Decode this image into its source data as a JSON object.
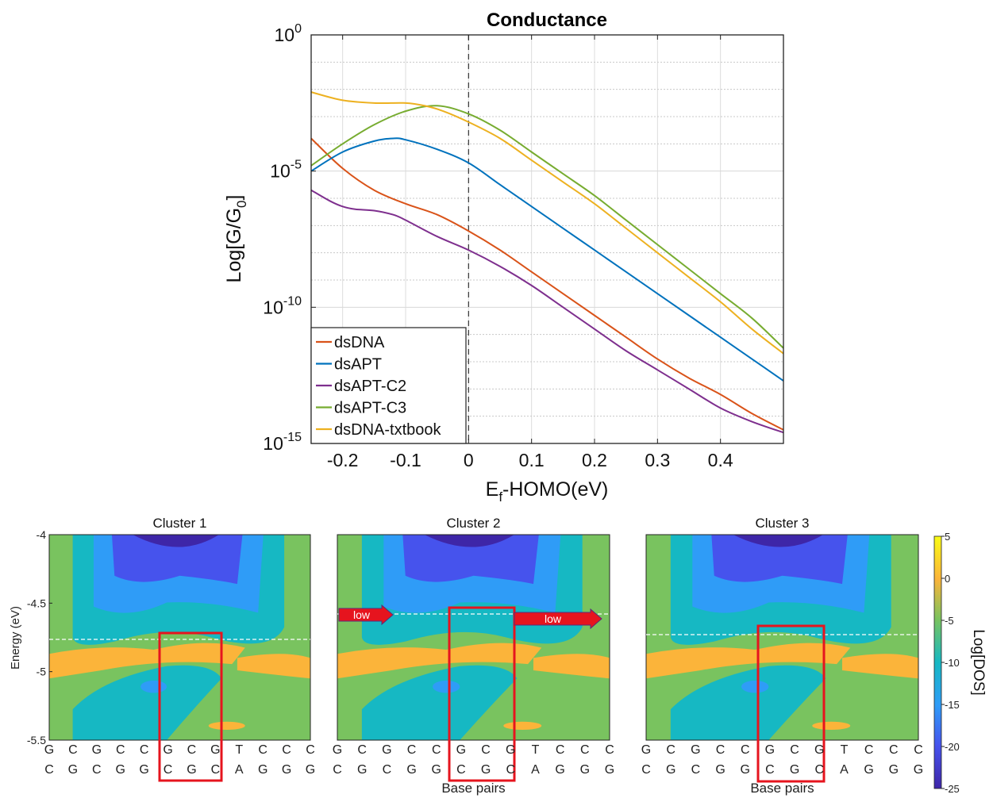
{
  "chart_data": [
    {
      "type": "line",
      "title": "Conductance",
      "xlabel_main": "E",
      "xlabel_sub": "f",
      "xlabel_rest": "-HOMO(eV)",
      "ylabel_pre": "Log[G/G",
      "ylabel_sub": "0",
      "ylabel_post": "]",
      "yscale": "log",
      "xlim": [
        -0.25,
        0.5
      ],
      "ylim_exponent": [
        -15,
        0
      ],
      "xticks": [
        -0.2,
        -0.1,
        0,
        0.1,
        0.2,
        0.3,
        0.4
      ],
      "xtick_labels": [
        "-0.2",
        "-0.1",
        "0",
        "0.1",
        "0.2",
        "0.3",
        "0.4"
      ],
      "yticks": [
        {
          "exponent": -15,
          "base": "10",
          "sup": "-15"
        },
        {
          "exponent": -10,
          "base": "10",
          "sup": "-10"
        },
        {
          "exponent": -5,
          "base": "10",
          "sup": "-5"
        },
        {
          "exponent": 0,
          "base": "10",
          "sup": "0"
        }
      ],
      "grid": true,
      "vline_x": 0,
      "legend_placement": "bottom-left",
      "series": [
        {
          "name": "dsDNA",
          "color": "#d95319",
          "x": [
            -0.25,
            -0.2,
            -0.15,
            -0.1,
            -0.05,
            0,
            0.05,
            0.1,
            0.15,
            0.2,
            0.25,
            0.3,
            0.35,
            0.4,
            0.45,
            0.5
          ],
          "log10y": [
            -3.8,
            -4.9,
            -5.7,
            -6.2,
            -6.6,
            -7.2,
            -7.9,
            -8.7,
            -9.5,
            -10.3,
            -11.1,
            -11.9,
            -12.6,
            -13.2,
            -13.9,
            -14.5
          ]
        },
        {
          "name": "dsAPT",
          "color": "#0072bd",
          "x": [
            -0.25,
            -0.2,
            -0.15,
            -0.12,
            -0.1,
            -0.05,
            0,
            0.05,
            0.1,
            0.15,
            0.2,
            0.25,
            0.3,
            0.35,
            0.4,
            0.45,
            0.5
          ],
          "log10y": [
            -5.0,
            -4.3,
            -3.9,
            -3.8,
            -3.85,
            -4.2,
            -4.7,
            -5.5,
            -6.3,
            -7.1,
            -7.9,
            -8.7,
            -9.5,
            -10.3,
            -11.1,
            -11.9,
            -12.7
          ]
        },
        {
          "name": "dsAPT-C2",
          "color": "#7e2f8e",
          "x": [
            -0.25,
            -0.22,
            -0.2,
            -0.18,
            -0.15,
            -0.12,
            -0.1,
            -0.05,
            0,
            0.05,
            0.1,
            0.15,
            0.2,
            0.25,
            0.3,
            0.35,
            0.4,
            0.45,
            0.5
          ],
          "log10y": [
            -5.7,
            -6.1,
            -6.3,
            -6.4,
            -6.45,
            -6.6,
            -6.8,
            -7.4,
            -7.9,
            -8.5,
            -9.2,
            -10.0,
            -10.8,
            -11.6,
            -12.3,
            -13.0,
            -13.7,
            -14.2,
            -14.6
          ]
        },
        {
          "name": "dsAPT-C3",
          "color": "#77ac30",
          "x": [
            -0.25,
            -0.2,
            -0.15,
            -0.1,
            -0.05,
            0,
            0.05,
            0.1,
            0.15,
            0.2,
            0.25,
            0.3,
            0.35,
            0.4,
            0.45,
            0.5
          ],
          "log10y": [
            -4.8,
            -4.0,
            -3.3,
            -2.8,
            -2.6,
            -2.9,
            -3.5,
            -4.3,
            -5.1,
            -5.9,
            -6.8,
            -7.7,
            -8.6,
            -9.5,
            -10.4,
            -11.5
          ]
        },
        {
          "name": "dsDNA-txtbook",
          "color": "#edb120",
          "x": [
            -0.25,
            -0.2,
            -0.15,
            -0.1,
            -0.07,
            -0.04,
            0,
            0.05,
            0.1,
            0.15,
            0.2,
            0.25,
            0.3,
            0.35,
            0.4,
            0.45,
            0.5
          ],
          "log10y": [
            -2.1,
            -2.4,
            -2.5,
            -2.5,
            -2.6,
            -2.8,
            -3.2,
            -3.8,
            -4.6,
            -5.4,
            -6.2,
            -7.1,
            -8.0,
            -8.9,
            -9.8,
            -10.8,
            -11.7
          ]
        }
      ]
    },
    {
      "type": "heatmap",
      "panels": [
        {
          "title": "Cluster 1",
          "xlabel": "",
          "low_labels": []
        },
        {
          "title": "Cluster 2",
          "xlabel": "Base pairs",
          "low_labels": [
            "low",
            "low"
          ]
        },
        {
          "title": "Cluster 3",
          "xlabel": "Base pairs",
          "low_labels": []
        }
      ],
      "ylabel": "Energy (eV)",
      "yticks": [
        "-4",
        "-4.5",
        "-5",
        "-5.5"
      ],
      "ylim": [
        -5.5,
        -4
      ],
      "strand_top": [
        "G",
        "C",
        "G",
        "C",
        "C",
        "G",
        "C",
        "G",
        "T",
        "C",
        "C",
        "C"
      ],
      "strand_bottom": [
        "C",
        "G",
        "C",
        "G",
        "G",
        "C",
        "G",
        "C",
        "A",
        "G",
        "G",
        "G"
      ],
      "highlight_bases": [
        5,
        7
      ],
      "colorbar_label": "Log[DOS]",
      "colorbar_ticks": [
        "5",
        "0",
        "-5",
        "-10",
        "-15",
        "-20",
        "-25"
      ],
      "colorbar_range": [
        -25,
        5
      ],
      "palette": [
        "#3e26a8",
        "#4653ed",
        "#2f9cf7",
        "#16b8c3",
        "#79c35f",
        "#fbb43a",
        "#f9fb15"
      ]
    }
  ]
}
